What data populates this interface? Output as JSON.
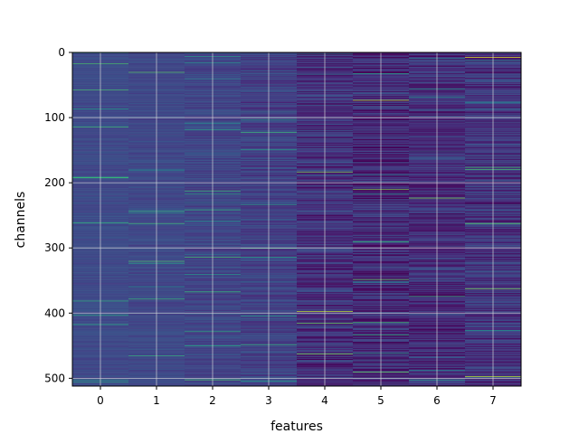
{
  "chart_data": {
    "type": "heatmap",
    "title": "",
    "xlabel": "features",
    "ylabel": "channels",
    "x_ticks": [
      "0",
      "1",
      "2",
      "3",
      "4",
      "5",
      "6",
      "7"
    ],
    "y_ticks": [
      "0",
      "100",
      "200",
      "300",
      "400",
      "500"
    ],
    "xlim": [
      -0.5,
      7.5
    ],
    "ylim": [
      512,
      0
    ],
    "n_rows": 512,
    "n_cols": 8,
    "colormap": "viridis",
    "grid": true,
    "value_note": "per-cell values not readable from image",
    "column_value_profile": [
      {
        "feature": 0,
        "mean": 0.28,
        "spread": 0.05
      },
      {
        "feature": 1,
        "mean": 0.27,
        "spread": 0.06
      },
      {
        "feature": 2,
        "mean": 0.26,
        "spread": 0.08
      },
      {
        "feature": 3,
        "mean": 0.24,
        "spread": 0.11
      },
      {
        "feature": 4,
        "mean": 0.17,
        "spread": 0.16
      },
      {
        "feature": 5,
        "mean": 0.14,
        "spread": 0.18
      },
      {
        "feature": 6,
        "mean": 0.16,
        "spread": 0.15
      },
      {
        "feature": 7,
        "mean": 0.19,
        "spread": 0.16
      }
    ],
    "bright_cells": [
      {
        "feature": 7,
        "channel": 7,
        "value": 0.95
      },
      {
        "feature": 5,
        "channel": 73,
        "value": 0.9
      },
      {
        "feature": 4,
        "channel": 183,
        "value": 0.8
      },
      {
        "feature": 5,
        "channel": 210,
        "value": 0.8
      },
      {
        "feature": 6,
        "channel": 223,
        "value": 0.8
      },
      {
        "feature": 1,
        "channel": 262,
        "value": 0.65
      },
      {
        "feature": 7,
        "channel": 262,
        "value": 0.75
      },
      {
        "feature": 3,
        "channel": 300,
        "value": 0.6
      },
      {
        "feature": 5,
        "channel": 348,
        "value": 0.75
      },
      {
        "feature": 7,
        "channel": 362,
        "value": 0.8
      },
      {
        "feature": 4,
        "channel": 397,
        "value": 0.9
      },
      {
        "feature": 4,
        "channel": 415,
        "value": 0.75
      },
      {
        "feature": 3,
        "channel": 448,
        "value": 0.6
      },
      {
        "feature": 4,
        "channel": 462,
        "value": 0.8
      },
      {
        "feature": 5,
        "channel": 490,
        "value": 0.75
      },
      {
        "feature": 7,
        "channel": 497,
        "value": 0.9
      },
      {
        "feature": 2,
        "channel": 502,
        "value": 0.7
      },
      {
        "feature": 0,
        "channel": 505,
        "value": 0.55
      }
    ]
  }
}
